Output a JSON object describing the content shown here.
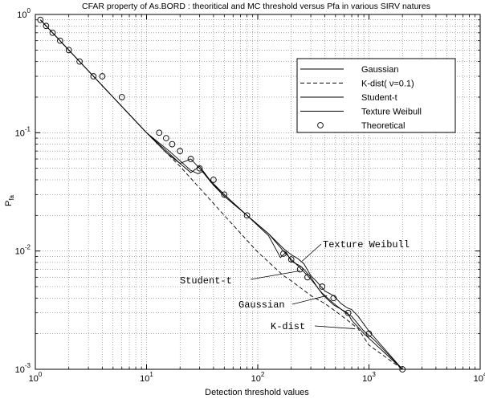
{
  "chart_data": {
    "type": "line",
    "title": "CFAR property of As.BORD : theoritical and MC threshold versus Pfa in various SIRV natures",
    "xlabel": "Detection threshold values",
    "ylabel": {
      "main": "P",
      "sub": "fa"
    },
    "x_scale": "log",
    "y_scale": "log",
    "xlim": [
      1,
      10000
    ],
    "ylim": [
      0.001,
      1
    ],
    "grid": true,
    "x_ticks": [
      {
        "value": 1,
        "base": "10",
        "exp": "0"
      },
      {
        "value": 10,
        "base": "10",
        "exp": "1"
      },
      {
        "value": 100,
        "base": "10",
        "exp": "2"
      },
      {
        "value": 1000,
        "base": "10",
        "exp": "3"
      },
      {
        "value": 10000,
        "base": "10",
        "exp": "4"
      }
    ],
    "y_ticks": [
      {
        "value": 1,
        "base": "10",
        "exp": "0"
      },
      {
        "value": 0.1,
        "base": "10",
        "exp": "-1"
      },
      {
        "value": 0.01,
        "base": "10",
        "exp": "-2"
      },
      {
        "value": 0.001,
        "base": "10",
        "exp": "-3"
      }
    ],
    "legend_position": "top-right",
    "legend": [
      {
        "label": "Gaussian",
        "style": "solid"
      },
      {
        "label": "K-dist( ν=0.1)",
        "style": "dashed"
      },
      {
        "label": "Student-t",
        "style": "solid"
      },
      {
        "label": "Texture Weibull",
        "style": "solid"
      },
      {
        "label": "Theoretical",
        "style": "circle"
      }
    ],
    "series": [
      {
        "name": "Gaussian",
        "style": "solid",
        "x": [
          1.11,
          1.25,
          1.43,
          1.67,
          2,
          2.5,
          3.33,
          5,
          10,
          16,
          20,
          25,
          29,
          32,
          38,
          50,
          80,
          125,
          170,
          200,
          240,
          290,
          340,
          390,
          480,
          640,
          700,
          900,
          2000
        ],
        "y": [
          0.9,
          0.8,
          0.7,
          0.6,
          0.5,
          0.4,
          0.3,
          0.2,
          0.1,
          0.07,
          0.058,
          0.048,
          0.045,
          0.047,
          0.038,
          0.03,
          0.02,
          0.014,
          0.01,
          0.0085,
          0.0072,
          0.006,
          0.005,
          0.0042,
          0.0035,
          0.003,
          0.0026,
          0.002,
          0.001
        ]
      },
      {
        "name": "K-dist( ν=0.1)",
        "style": "dashed",
        "x": [
          1.11,
          2,
          5,
          10,
          20,
          50,
          100,
          170,
          200,
          300,
          400,
          500,
          640,
          800,
          1000,
          2000
        ],
        "y": [
          0.9,
          0.5,
          0.2,
          0.1,
          0.052,
          0.02,
          0.0098,
          0.0062,
          0.0056,
          0.0042,
          0.0036,
          0.0031,
          0.0026,
          0.0022,
          0.0016,
          0.001
        ]
      },
      {
        "name": "Student-t",
        "style": "solid",
        "x": [
          1.11,
          1.43,
          2,
          3.33,
          5,
          10,
          14,
          20,
          25,
          30,
          37,
          50,
          80,
          125,
          160,
          180,
          200,
          240,
          260,
          300,
          350,
          380,
          450,
          500,
          620,
          700,
          900,
          1100,
          2000
        ],
        "y": [
          0.9,
          0.7,
          0.5,
          0.3,
          0.2,
          0.1,
          0.075,
          0.055,
          0.046,
          0.052,
          0.04,
          0.03,
          0.02,
          0.0135,
          0.0088,
          0.0098,
          0.0082,
          0.0075,
          0.007,
          0.006,
          0.0048,
          0.0044,
          0.0038,
          0.0035,
          0.003,
          0.0028,
          0.0021,
          0.0018,
          0.001
        ]
      },
      {
        "name": "Texture Weibull",
        "style": "solid",
        "x": [
          1.11,
          1.43,
          2,
          3.33,
          5,
          10,
          15,
          20,
          25,
          30,
          35,
          40,
          50,
          80,
          125,
          170,
          200,
          230,
          260,
          300,
          340,
          400,
          480,
          560,
          640,
          700,
          800,
          1000,
          2000
        ],
        "y": [
          0.9,
          0.7,
          0.5,
          0.3,
          0.2,
          0.1,
          0.068,
          0.055,
          0.06,
          0.05,
          0.042,
          0.036,
          0.029,
          0.02,
          0.014,
          0.0105,
          0.0093,
          0.0086,
          0.0078,
          0.0062,
          0.0055,
          0.0046,
          0.0042,
          0.0036,
          0.0033,
          0.0032,
          0.0028,
          0.0021,
          0.001
        ]
      }
    ],
    "theoretical_points": {
      "name": "Theoretical",
      "x": [
        1.11,
        1.25,
        1.43,
        1.67,
        2,
        2.5,
        3.33,
        4,
        6,
        13,
        15,
        17,
        20,
        25,
        30,
        40,
        50,
        80,
        170,
        200,
        240,
        280,
        380,
        480,
        650,
        1000,
        2000
      ],
      "y": [
        0.9,
        0.8,
        0.7,
        0.6,
        0.5,
        0.4,
        0.3,
        0.3,
        0.2,
        0.1,
        0.09,
        0.08,
        0.07,
        0.06,
        0.05,
        0.04,
        0.03,
        0.02,
        0.0095,
        0.0085,
        0.007,
        0.006,
        0.005,
        0.004,
        0.003,
        0.002,
        0.001
      ]
    },
    "annotations": [
      {
        "id": "texture",
        "text": "Texture Weibull",
        "target": [
          250,
          0.0082
        ]
      },
      {
        "id": "student",
        "text": "Student-t",
        "target": [
          240,
          0.0068
        ]
      },
      {
        "id": "gaussian",
        "text": "Gaussian",
        "target": [
          420,
          0.0042
        ]
      },
      {
        "id": "kdist",
        "text": "K-dist",
        "target": [
          750,
          0.0022
        ]
      }
    ]
  }
}
